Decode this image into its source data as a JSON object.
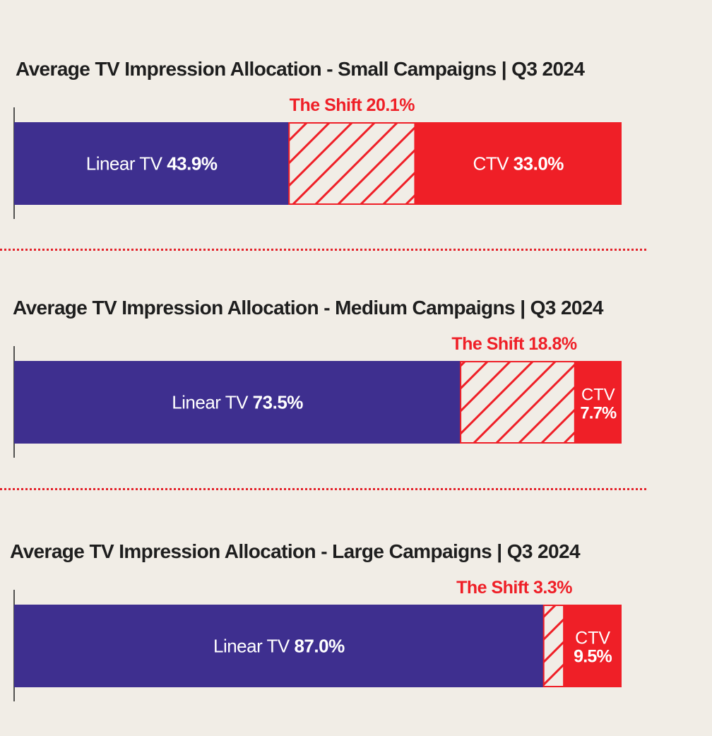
{
  "colors": {
    "background": "#f1ede6",
    "linear": "#3e2f8f",
    "ctv": "#ef1f27",
    "shift_stripe": "#ef1f27",
    "shift_fill": "#f1ede6",
    "title": "#1e1e1e",
    "divider": "#e4222b"
  },
  "chart_data": [
    {
      "type": "bar",
      "title": "Average TV Impression Allocation - Small Campaigns  | Q3 2024",
      "series": [
        {
          "name": "Linear TV",
          "value": 43.9,
          "label_text": "Linear TV",
          "value_text": "43.9%"
        },
        {
          "name": "The Shift",
          "value": 20.1,
          "label_text": "The Shift 20.1%"
        },
        {
          "name": "CTV",
          "value": 33.0,
          "label_text": "CTV",
          "value_text": "33.0%"
        }
      ]
    },
    {
      "type": "bar",
      "title": "Average TV Impression Allocation - Medium Campaigns | Q3 2024",
      "series": [
        {
          "name": "Linear TV",
          "value": 73.5,
          "label_text": "Linear TV",
          "value_text": "73.5%"
        },
        {
          "name": "The Shift",
          "value": 18.8,
          "label_text": "The Shift 18.8%"
        },
        {
          "name": "CTV",
          "value": 7.7,
          "label_text": "CTV",
          "value_text": "7.7%"
        }
      ]
    },
    {
      "type": "bar",
      "title": "Average TV Impression Allocation - Large Campaigns | Q3 2024",
      "series": [
        {
          "name": "Linear TV",
          "value": 87.0,
          "label_text": "Linear TV",
          "value_text": "87.0%"
        },
        {
          "name": "The Shift",
          "value": 3.3,
          "label_text": "The Shift 3.3%"
        },
        {
          "name": "CTV",
          "value": 9.5,
          "label_text": "CTV",
          "value_text": "9.5%"
        }
      ]
    }
  ]
}
